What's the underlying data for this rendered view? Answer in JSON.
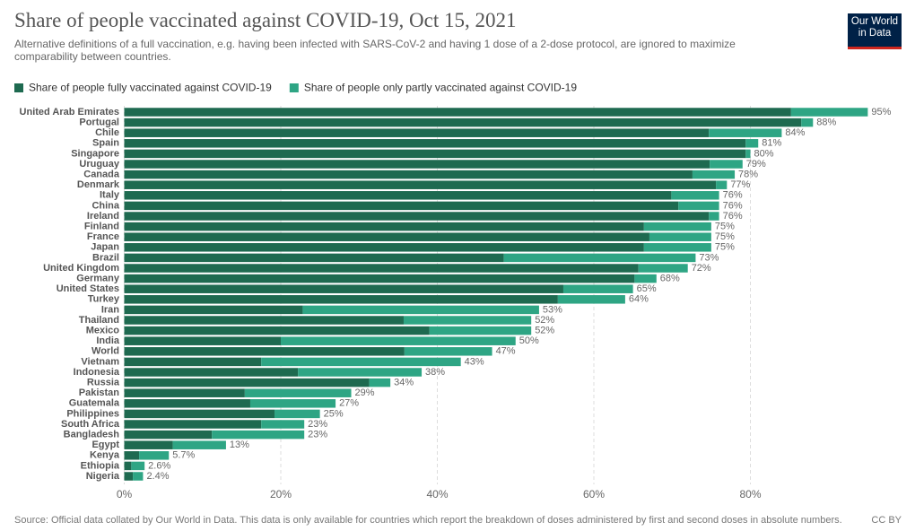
{
  "chart_data": {
    "type": "stacked-barh",
    "title": "Share of people vaccinated against COVID-19, Oct 15, 2021",
    "subtitle": "Alternative definitions of a full vaccination, e.g. having been infected with SARS-CoV-2 and having 1 dose of a 2-dose protocol, are ignored to maximize comparability between countries.",
    "logo": "Our World in Data",
    "source": "Source: Official data collated by Our World in Data. This data is only available for countries which report the breakdown of doses administered by first and second doses in absolute numbers.",
    "license": "CC BY",
    "categories": [
      "United Arab Emirates",
      "Portugal",
      "Chile",
      "Spain",
      "Singapore",
      "Uruguay",
      "Canada",
      "Denmark",
      "Italy",
      "China",
      "Ireland",
      "Finland",
      "France",
      "Japan",
      "Brazil",
      "United Kingdom",
      "Germany",
      "United States",
      "Turkey",
      "Iran",
      "Thailand",
      "Mexico",
      "India",
      "World",
      "Vietnam",
      "Indonesia",
      "Russia",
      "Pakistan",
      "Guatemala",
      "Philippines",
      "South Africa",
      "Bangladesh",
      "Egypt",
      "Kenya",
      "Ethiopia",
      "Nigeria"
    ],
    "series": [
      {
        "name": "Share of people fully vaccinated against COVID-19",
        "color": "#1e6a50",
        "values": [
          85.2,
          86.5,
          74.7,
          79.4,
          79.4,
          74.8,
          72.6,
          75.6,
          69.9,
          70.8,
          74.7,
          66.4,
          67.1,
          66.4,
          48.5,
          65.7,
          65.2,
          56.1,
          55.4,
          22.8,
          35.7,
          39.0,
          20.0,
          35.8,
          17.5,
          22.2,
          31.3,
          15.4,
          16.1,
          19.2,
          17.5,
          11.2,
          6.2,
          1.9,
          0.9,
          1.1
        ]
      },
      {
        "name": "Share of people only partly vaccinated against COVID-19",
        "color": "#2ea584",
        "values": [
          9.8,
          1.5,
          9.3,
          1.6,
          0.6,
          4.2,
          5.4,
          1.4,
          6.1,
          5.2,
          1.3,
          8.6,
          7.9,
          8.6,
          24.5,
          6.3,
          2.8,
          8.9,
          8.6,
          30.2,
          16.3,
          13.0,
          30.0,
          11.2,
          25.5,
          15.8,
          2.7,
          13.6,
          10.9,
          5.8,
          5.5,
          11.8,
          6.8,
          3.8,
          1.7,
          1.3
        ]
      }
    ],
    "totals": [
      95,
      88,
      84,
      81,
      80,
      79,
      78,
      77,
      76,
      76,
      76,
      75,
      75,
      75,
      73,
      72,
      68,
      65,
      64,
      53,
      52,
      52,
      50,
      47,
      43,
      38,
      34,
      29,
      27,
      25,
      23,
      23,
      13,
      5.7,
      2.6,
      2.4
    ],
    "total_labels": [
      "95%",
      "88%",
      "84%",
      "81%",
      "80%",
      "79%",
      "78%",
      "77%",
      "76%",
      "76%",
      "76%",
      "75%",
      "75%",
      "75%",
      "73%",
      "72%",
      "68%",
      "65%",
      "64%",
      "53%",
      "52%",
      "52%",
      "50%",
      "47%",
      "43%",
      "38%",
      "34%",
      "29%",
      "27%",
      "25%",
      "23%",
      "23%",
      "13%",
      "5.7%",
      "2.6%",
      "2.4%"
    ],
    "xlim": [
      0,
      100
    ],
    "xticks": [
      {
        "value": 0,
        "label": "0%"
      },
      {
        "value": 20,
        "label": "20%"
      },
      {
        "value": 40,
        "label": "40%"
      },
      {
        "value": 60,
        "label": "60%"
      },
      {
        "value": 80,
        "label": "80%"
      }
    ],
    "grid": true
  }
}
